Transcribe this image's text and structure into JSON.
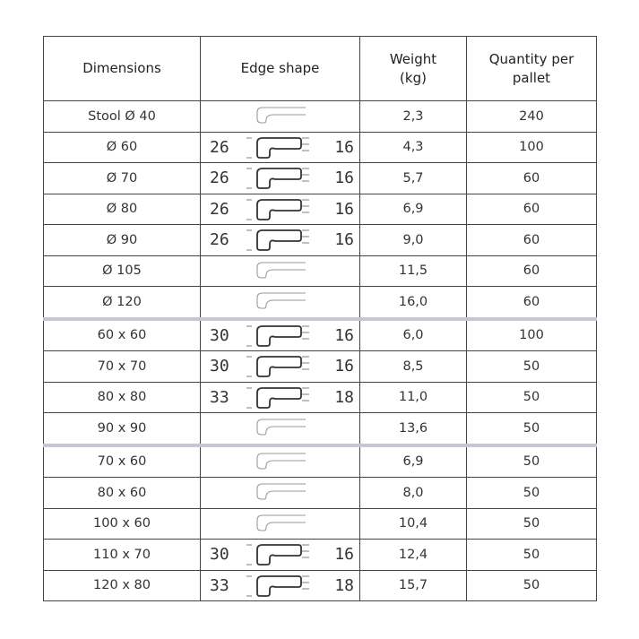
{
  "headers": [
    "Dimensions",
    "Edge shape",
    "Weight\n(kg)",
    "Quantity per\npallet"
  ],
  "separator_color": "#c9c5d3",
  "groups": [
    [
      {
        "dim": "Stool Ø 40",
        "edge": {
          "style": "simple"
        },
        "weight": "2,3",
        "qty": "240"
      },
      {
        "dim": "Ø 60",
        "edge": {
          "style": "dimensioned",
          "left": "26",
          "right": "16"
        },
        "weight": "4,3",
        "qty": "100"
      },
      {
        "dim": "Ø 70",
        "edge": {
          "style": "dimensioned",
          "left": "26",
          "right": "16"
        },
        "weight": "5,7",
        "qty": "60"
      },
      {
        "dim": "Ø 80",
        "edge": {
          "style": "dimensioned",
          "left": "26",
          "right": "16"
        },
        "weight": "6,9",
        "qty": "60"
      },
      {
        "dim": "Ø 90",
        "edge": {
          "style": "dimensioned",
          "left": "26",
          "right": "16"
        },
        "weight": "9,0",
        "qty": "60"
      },
      {
        "dim": "Ø 105",
        "edge": {
          "style": "simple"
        },
        "weight": "11,5",
        "qty": "60"
      },
      {
        "dim": "Ø 120",
        "edge": {
          "style": "simple"
        },
        "weight": "16,0",
        "qty": "60"
      }
    ],
    [
      {
        "dim": "60 x 60",
        "edge": {
          "style": "dimensioned",
          "left": "30",
          "right": "16"
        },
        "weight": "6,0",
        "qty": "100"
      },
      {
        "dim": "70 x 70",
        "edge": {
          "style": "dimensioned",
          "left": "30",
          "right": "16"
        },
        "weight": "8,5",
        "qty": "50"
      },
      {
        "dim": "80 x 80",
        "edge": {
          "style": "dimensioned",
          "left": "33",
          "right": "18"
        },
        "weight": "11,0",
        "qty": "50"
      },
      {
        "dim": "90 x 90",
        "edge": {
          "style": "simple"
        },
        "weight": "13,6",
        "qty": "50"
      }
    ],
    [
      {
        "dim": "70 x 60",
        "edge": {
          "style": "simple"
        },
        "weight": "6,9",
        "qty": "50"
      },
      {
        "dim": "80 x 60",
        "edge": {
          "style": "simple"
        },
        "weight": "8,0",
        "qty": "50"
      },
      {
        "dim": "100 x 60",
        "edge": {
          "style": "simple"
        },
        "weight": "10,4",
        "qty": "50"
      },
      {
        "dim": "110 x 70",
        "edge": {
          "style": "dimensioned",
          "left": "30",
          "right": "16"
        },
        "weight": "12,4",
        "qty": "50"
      },
      {
        "dim": "120 x 80",
        "edge": {
          "style": "dimensioned",
          "left": "33",
          "right": "18"
        },
        "weight": "15,7",
        "qty": "50"
      }
    ]
  ]
}
